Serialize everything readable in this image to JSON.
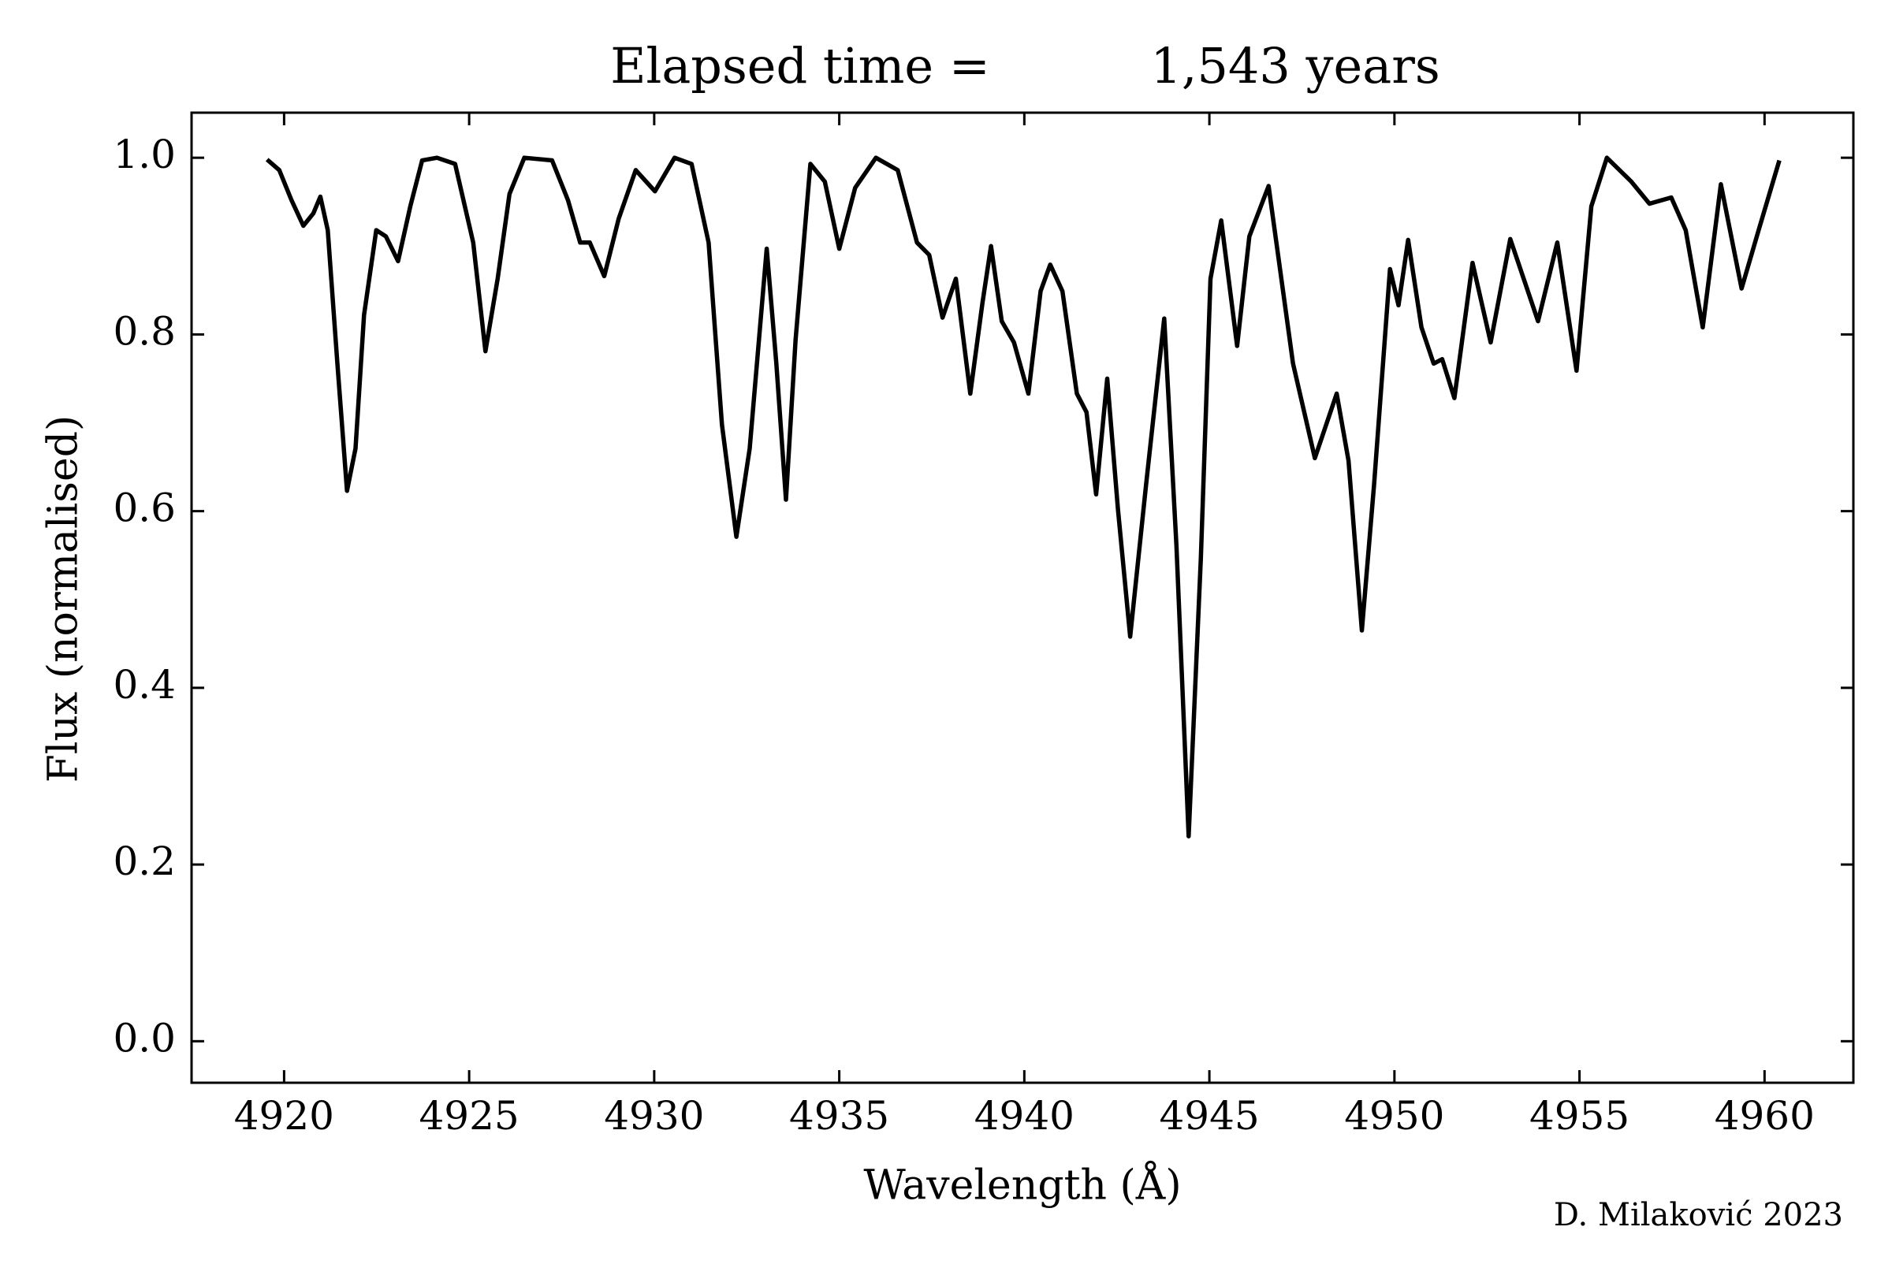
{
  "chart_data": {
    "type": "line",
    "title": "Elapsed time =",
    "title_value": "1,543 years",
    "xlabel": "Wavelength (Å)",
    "ylabel": "Flux (normalised)",
    "credit": "D. Milaković 2023",
    "xlim": [
      4917.5,
      4962.4
    ],
    "ylim": [
      -0.047,
      1.051
    ],
    "xticks": [
      4920,
      4925,
      4930,
      4935,
      4940,
      4945,
      4950,
      4955,
      4960
    ],
    "yticks": [
      {
        "value": 0,
        "label": "0.0"
      },
      0.2,
      0.4,
      0.6,
      0.8,
      {
        "value": 1,
        "label": "1.0"
      }
    ],
    "series": [
      {
        "color": "#000000",
        "x": [
          4919.54,
          4919.87,
          4920.2,
          4920.52,
          4920.79,
          4920.98,
          4921.18,
          4921.44,
          4921.7,
          4921.93,
          4922.16,
          4922.49,
          4922.75,
          4923.08,
          4923.41,
          4923.73,
          4924.13,
          4924.62,
          4925.11,
          4925.44,
          4925.77,
          4926.09,
          4926.49,
          4927.24,
          4927.67,
          4928.0,
          4928.26,
          4928.65,
          4929.04,
          4929.5,
          4930.02,
          4930.55,
          4931.01,
          4931.47,
          4931.83,
          4932.22,
          4932.58,
          4933.04,
          4933.3,
          4933.56,
          4933.82,
          4934.22,
          4934.61,
          4935.0,
          4935.43,
          4935.99,
          4936.58,
          4937.1,
          4937.43,
          4937.79,
          4938.15,
          4938.54,
          4938.87,
          4939.1,
          4939.39,
          4939.72,
          4940.11,
          4940.44,
          4940.7,
          4941.03,
          4941.42,
          4941.68,
          4941.94,
          4942.24,
          4942.53,
          4942.86,
          4943.29,
          4943.78,
          4944.11,
          4944.44,
          4944.77,
          4945.03,
          4945.32,
          4945.75,
          4946.08,
          4946.6,
          4947.26,
          4947.85,
          4948.44,
          4948.76,
          4949.12,
          4949.45,
          4949.88,
          4950.11,
          4950.37,
          4950.73,
          4951.06,
          4951.29,
          4951.62,
          4952.11,
          4952.6,
          4953.13,
          4953.88,
          4954.4,
          4954.92,
          4955.32,
          4955.74,
          4956.4,
          4956.89,
          4957.48,
          4957.87,
          4958.33,
          4958.82,
          4959.38,
          4959.84,
          4960.4
        ],
        "values": [
          0.998,
          0.986,
          0.952,
          0.923,
          0.937,
          0.956,
          0.918,
          0.767,
          0.623,
          0.671,
          0.822,
          0.918,
          0.911,
          0.883,
          0.945,
          0.997,
          1.0,
          0.993,
          0.904,
          0.781,
          0.863,
          0.959,
          1.0,
          0.997,
          0.952,
          0.904,
          0.904,
          0.866,
          0.931,
          0.986,
          0.962,
          1.0,
          0.993,
          0.904,
          0.698,
          0.571,
          0.671,
          0.897,
          0.767,
          0.613,
          0.794,
          0.993,
          0.973,
          0.897,
          0.966,
          1.0,
          0.986,
          0.904,
          0.89,
          0.819,
          0.863,
          0.733,
          0.836,
          0.9,
          0.815,
          0.791,
          0.733,
          0.849,
          0.879,
          0.849,
          0.733,
          0.712,
          0.619,
          0.75,
          0.602,
          0.458,
          0.63,
          0.818,
          0.561,
          0.232,
          0.547,
          0.863,
          0.929,
          0.787,
          0.911,
          0.968,
          0.767,
          0.66,
          0.733,
          0.657,
          0.465,
          0.63,
          0.874,
          0.833,
          0.907,
          0.808,
          0.767,
          0.772,
          0.728,
          0.881,
          0.791,
          0.908,
          0.815,
          0.904,
          0.759,
          0.945,
          1.0,
          0.973,
          0.948,
          0.955,
          0.918,
          0.808,
          0.97,
          0.852,
          0.918,
          0.997
        ]
      }
    ]
  }
}
